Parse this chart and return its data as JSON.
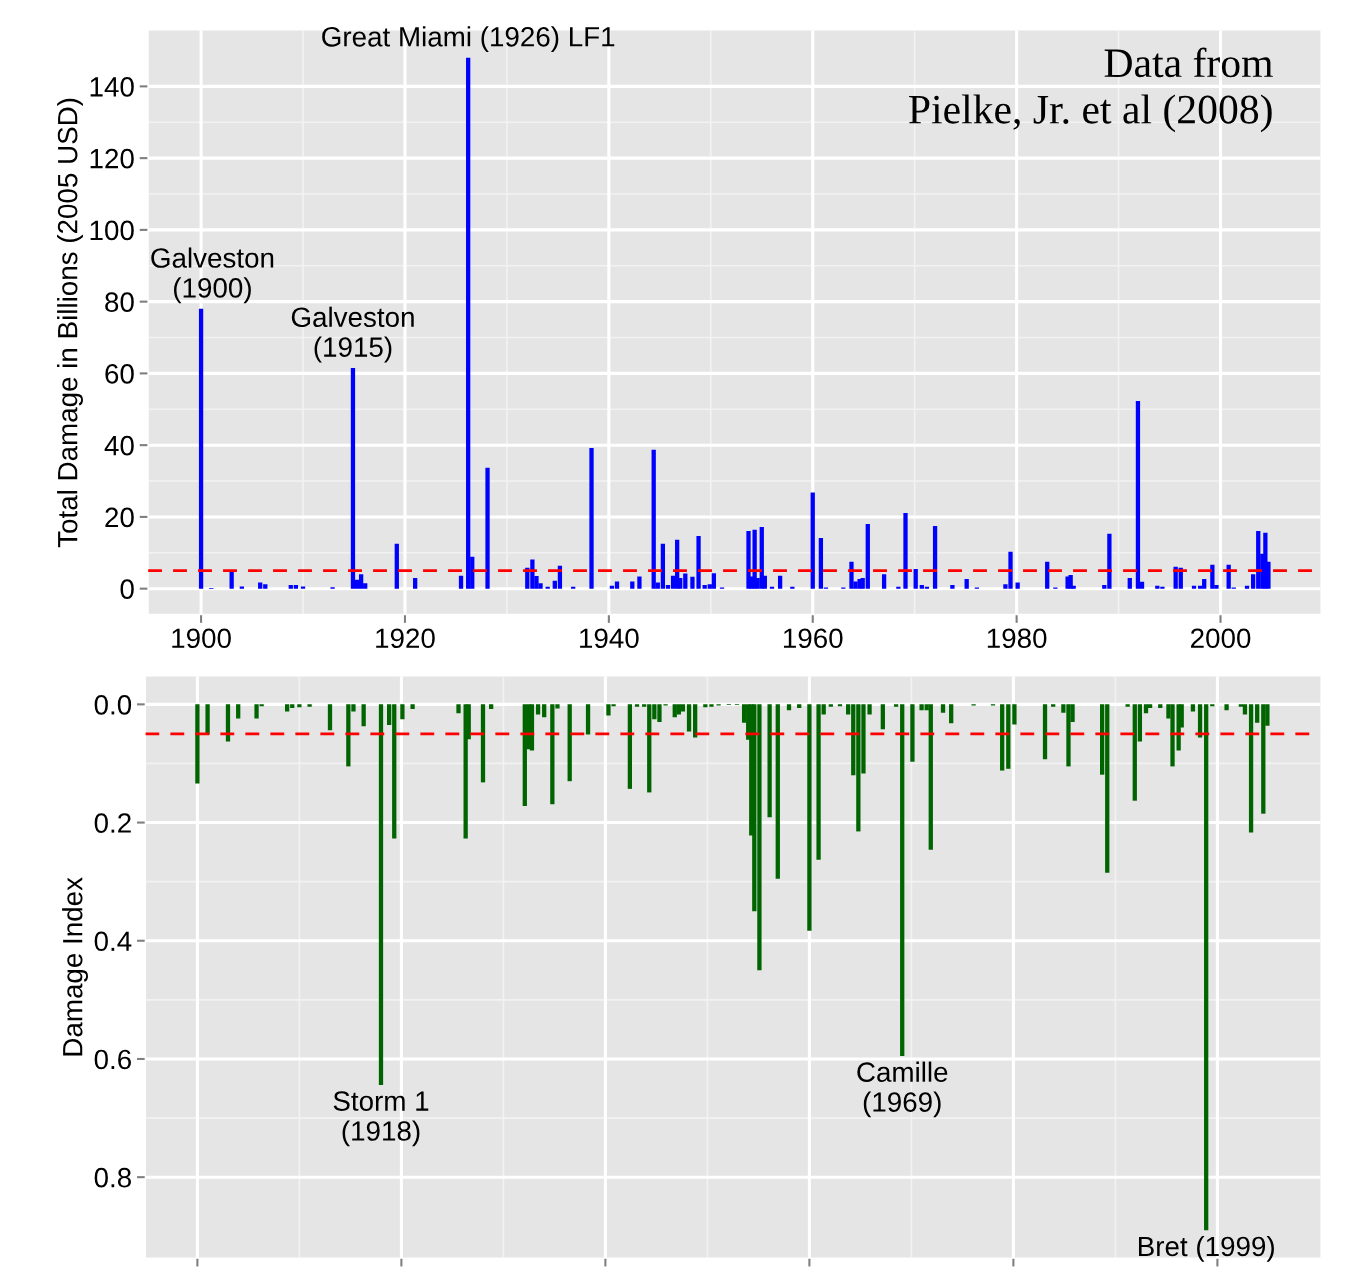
{
  "chart_data": [
    {
      "type": "bar",
      "ylabel": "Total Damage in Billions (2005 USD)",
      "x": [
        1900.0,
        1901.0,
        1903.0,
        1904.0,
        1905.8,
        1906.3,
        1908.8,
        1909.3,
        1910.0,
        1912.9,
        1914.9,
        1915.3,
        1915.7,
        1916.1,
        1919.2,
        1921.0,
        1925.5,
        1926.2,
        1926.6,
        1928.1,
        1932.0,
        1932.5,
        1932.9,
        1933.3,
        1934.0,
        1934.7,
        1935.2,
        1936.5,
        1938.3,
        1940.3,
        1940.8,
        1942.3,
        1943.0,
        1944.4,
        1944.8,
        1945.3,
        1945.8,
        1946.3,
        1946.7,
        1947.0,
        1947.5,
        1948.2,
        1948.8,
        1949.4,
        1949.9,
        1950.3,
        1951.1,
        1953.7,
        1954.0,
        1954.3,
        1954.6,
        1955.0,
        1955.3,
        1956.0,
        1956.8,
        1958.0,
        1960.0,
        1960.8,
        1961.3,
        1963.0,
        1963.8,
        1964.2,
        1964.6,
        1964.9,
        1965.4,
        1967.0,
        1968.4,
        1969.1,
        1970.1,
        1970.7,
        1971.2,
        1972.0,
        1973.7,
        1975.1,
        1976.1,
        1978.9,
        1979.4,
        1980.1,
        1983.0,
        1983.8,
        1985.0,
        1985.3,
        1985.6,
        1988.6,
        1989.1,
        1991.1,
        1991.9,
        1992.3,
        1993.8,
        1994.3,
        1995.6,
        1996.1,
        1997.4,
        1998.0,
        1998.4,
        1999.2,
        1999.6,
        2000.8,
        2001.3,
        2002.6,
        2003.2,
        2003.7,
        2004.1,
        2004.4,
        2004.7
      ],
      "values": [
        78,
        0.2,
        5,
        0.6,
        1.7,
        1.2,
        1,
        1,
        0.6,
        0.4,
        61.5,
        2.5,
        4,
        1.5,
        12.5,
        3,
        3.6,
        148,
        8.9,
        33.7,
        5.8,
        8.1,
        3.5,
        1.5,
        0.5,
        2.2,
        6.4,
        0.5,
        39.2,
        0.8,
        2,
        2,
        3.4,
        38.7,
        1.7,
        12.5,
        1,
        3.6,
        13.6,
        3,
        4.2,
        3.3,
        14.7,
        1,
        1.2,
        4.3,
        0.3,
        16.1,
        3.4,
        16.4,
        3,
        17.2,
        3.6,
        0.5,
        3.6,
        0.5,
        26.8,
        14.1,
        0.3,
        0.3,
        7.5,
        2,
        2.7,
        3,
        18,
        4,
        0.5,
        21.1,
        5.5,
        1,
        0.5,
        17.5,
        1,
        2.7,
        0.3,
        1.2,
        10.3,
        1.7,
        7.5,
        0.3,
        3.4,
        3.8,
        0.8,
        1,
        15.3,
        3,
        52.3,
        1.9,
        0.8,
        0.5,
        6.1,
        5.8,
        0.8,
        0.8,
        2.7,
        6.7,
        1,
        6.7,
        0.3,
        0.8,
        4,
        16.1,
        9.7,
        15.6,
        7.5
      ],
      "color": "#0000ff",
      "xlim": [
        1894.8,
        2009.8
      ],
      "xticks": [
        1900,
        1920,
        1940,
        1960,
        1980,
        2000
      ],
      "ylim": [
        -7.2,
        155.6
      ],
      "yticks": [
        0,
        20,
        40,
        60,
        80,
        100,
        120,
        140
      ],
      "grid": true,
      "ref_lines": [
        {
          "axis": "y",
          "value": 5,
          "color": "#ff0000",
          "line_style": "dashed"
        }
      ],
      "annotations": [
        {
          "text": "Galveston\n(1900)",
          "x": 1900.0,
          "y": 78
        },
        {
          "text": "Galveston\n(1915)",
          "x": 1914.9,
          "y": 61.5
        },
        {
          "text": "Great Miami (1926) LF1",
          "x": 1926.2,
          "y": 148
        },
        "Data from\nPielke, Jr. et al (2008)"
      ]
    },
    {
      "type": "bar",
      "ylabel": "Damage Index",
      "x": [
        1900.0,
        1901.0,
        1903.0,
        1904.0,
        1905.8,
        1906.3,
        1908.8,
        1909.3,
        1910.0,
        1911.0,
        1913.0,
        1914.8,
        1915.3,
        1916.3,
        1918.0,
        1918.8,
        1919.3,
        1920.1,
        1921.1,
        1925.6,
        1926.3,
        1926.6,
        1928.0,
        1928.8,
        1932.1,
        1932.5,
        1932.8,
        1933.4,
        1934.0,
        1934.8,
        1935.3,
        1936.5,
        1938.3,
        1940.3,
        1940.8,
        1942.4,
        1943.1,
        1943.8,
        1944.3,
        1944.8,
        1945.3,
        1945.9,
        1946.8,
        1947.2,
        1947.6,
        1948.2,
        1948.8,
        1949.8,
        1950.4,
        1951.1,
        1952.1,
        1952.9,
        1953.6,
        1954.0,
        1954.3,
        1954.6,
        1955.1,
        1956.1,
        1956.9,
        1958.0,
        1959.0,
        1960.0,
        1960.9,
        1961.4,
        1962.1,
        1963.0,
        1963.8,
        1964.3,
        1964.8,
        1965.3,
        1965.9,
        1967.2,
        1968.5,
        1969.1,
        1970.1,
        1971.0,
        1971.5,
        1971.9,
        1973.1,
        1973.9,
        1976.1,
        1978.0,
        1978.9,
        1979.5,
        1980.1,
        1983.1,
        1983.9,
        1984.9,
        1985.4,
        1985.8,
        1988.7,
        1989.2,
        1991.2,
        1991.9,
        1992.4,
        1993.0,
        1993.4,
        1994.4,
        1995.2,
        1995.6,
        1996.2,
        1996.5,
        1997.6,
        1998.3,
        1998.9,
        1999.5,
        2000.9,
        2002.3,
        2002.7,
        2003.3,
        2003.9,
        2004.5,
        2004.9
      ],
      "values": [
        0.134,
        0.051,
        0.063,
        0.024,
        0.024,
        0.003,
        0.012,
        0.006,
        0.005,
        0.004,
        0.044,
        0.105,
        0.012,
        0.037,
        0.644,
        0.035,
        0.227,
        0.025,
        0.008,
        0.015,
        0.227,
        0.059,
        0.132,
        0.008,
        0.172,
        0.076,
        0.078,
        0.017,
        0.022,
        0.169,
        0.007,
        0.13,
        0.051,
        0.019,
        0.003,
        0.143,
        0.004,
        0.004,
        0.149,
        0.025,
        0.03,
        0.002,
        0.022,
        0.017,
        0.012,
        0.046,
        0.056,
        0.005,
        0.004,
        0.002,
        0.001,
        0.001,
        0.031,
        0.06,
        0.222,
        0.35,
        0.45,
        0.191,
        0.295,
        0.01,
        0.006,
        0.383,
        0.263,
        0.017,
        0.004,
        0.003,
        0.017,
        0.12,
        0.215,
        0.117,
        0.017,
        0.042,
        0.004,
        0.595,
        0.097,
        0.01,
        0.01,
        0.246,
        0.014,
        0.032,
        0.002,
        0.002,
        0.112,
        0.109,
        0.034,
        0.093,
        0.004,
        0.014,
        0.105,
        0.03,
        0.119,
        0.285,
        0.004,
        0.163,
        0.063,
        0.015,
        0.006,
        0.006,
        0.024,
        0.105,
        0.078,
        0.039,
        0.012,
        0.056,
        0.89,
        0.003,
        0.01,
        0.004,
        0.017,
        0.217,
        0.031,
        0.185,
        0.036
      ],
      "color": "#006400",
      "xlim": [
        1894.9,
        2010.1
      ],
      "xticks": [
        1900,
        1920,
        1940,
        1960,
        1980,
        2000
      ],
      "ylim": [
        0.937,
        -0.047
      ],
      "yticks": [
        {
          "value": 0,
          "label": "0.0"
        },
        {
          "value": 0.2,
          "label": "0.2"
        },
        {
          "value": 0.4,
          "label": "0.4"
        },
        {
          "value": 0.6,
          "label": "0.6"
        },
        {
          "value": 0.8,
          "label": "0.8"
        }
      ],
      "tick_labels": "y",
      "grid": true,
      "ref_lines": [
        {
          "axis": "y",
          "value": 0.05,
          "color": "#ff0000",
          "line_style": "dashed"
        }
      ],
      "annotations": [
        {
          "text": "Storm 1\n(1918)",
          "x": 1918.0,
          "y": 0.644
        },
        {
          "text": "Camille\n(1969)",
          "x": 1969.1,
          "y": 0.595
        },
        {
          "text": "Bret (1999)",
          "x": 1998.9,
          "y": 0.89
        }
      ]
    }
  ]
}
